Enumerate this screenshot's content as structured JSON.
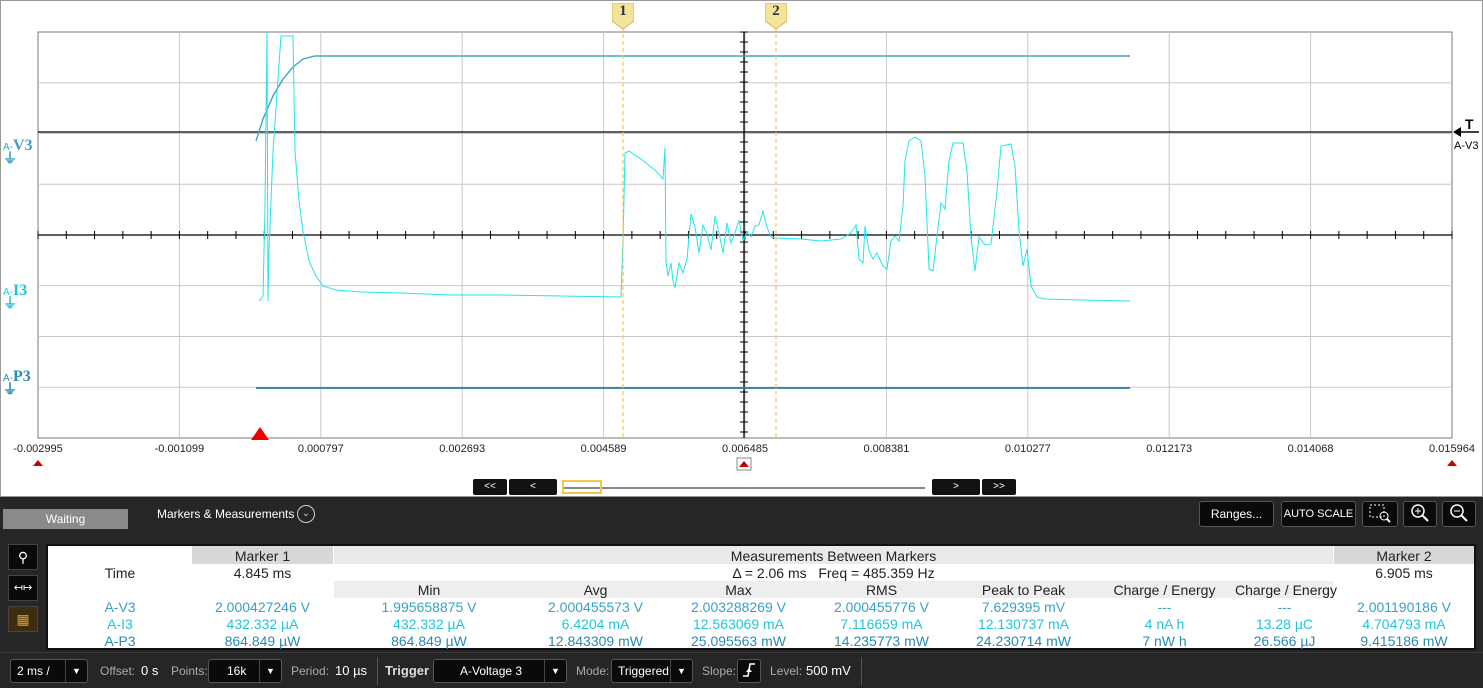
{
  "x_ticks": [
    "-0.002995",
    "-0.001099",
    "0.000797",
    "0.002693",
    "0.004589",
    "0.006485",
    "0.008381",
    "0.010277",
    "0.012173",
    "0.014068",
    "0.015964"
  ],
  "channels": {
    "v3": "V3",
    "i3": "I3",
    "p3": "P3",
    "prefix": "A-"
  },
  "trigger_marker": {
    "t": "T",
    "label": "A-V3"
  },
  "markers": {
    "m1": "1",
    "m2": "2"
  },
  "nav": {
    "first": "<<",
    "prev": "<",
    "next": ">",
    "last": ">>"
  },
  "toolbar": {
    "status": "Waiting",
    "mm_label": "Markers & Measurements",
    "ranges": "Ranges...",
    "autoscale": "AUTO SCALE"
  },
  "table": {
    "marker1": "Marker 1",
    "between": "Measurements Between Markers",
    "marker2": "Marker 2",
    "time_label": "Time",
    "m1_time": "4.845 ms",
    "delta": "Δ = 2.06 ms   Freq = 485.359 Hz",
    "m2_time": "6.905 ms",
    "cols": [
      "Min",
      "Avg",
      "Max",
      "RMS",
      "Peak to Peak",
      "Charge / Energy",
      "Charge / Energy"
    ],
    "rows": [
      {
        "name": "A-V3",
        "m1": "2.000427246 V",
        "vals": [
          "1.995658875 V",
          "2.000455573 V",
          "2.003288269 V",
          "2.000455776 V",
          "7.629395 mV",
          "---",
          "---"
        ],
        "m2": "2.001190186 V"
      },
      {
        "name": "A-I3",
        "m1": "432.332 µA",
        "vals": [
          "432.332 µA",
          "6.4204 mA",
          "12.563069 mA",
          "7.116659 mA",
          "12.130737 mA",
          "4 nA h",
          "13.28 µC"
        ],
        "m2": "4.704793 mA"
      },
      {
        "name": "A-P3",
        "m1": "864.849 µW",
        "vals": [
          "864.849 µW",
          "12.843309 mW",
          "25.095563 mW",
          "14.235773 mW",
          "24.230714 mW",
          "7 nW h",
          "26.566 µJ"
        ],
        "m2": "9.415186 mW"
      }
    ]
  },
  "bottom": {
    "timebase": "2 ms /",
    "offset_label": "Offset:",
    "offset_val": "0 s",
    "points_label": "Points:",
    "points_val": "16k",
    "period_label": "Period:",
    "period_val": "10 µs",
    "trigger_label": "Trigger",
    "trigger_src": "A-Voltage 3",
    "mode_label": "Mode:",
    "mode_val": "Triggered",
    "slope_label": "Slope:",
    "level_label": "Level:",
    "level_val": "500 mV"
  },
  "colors": {
    "v3": "#3aa0c4",
    "i3": "#22e4ec",
    "p3": "#2a7aa8",
    "marker": "#f2c84b"
  }
}
